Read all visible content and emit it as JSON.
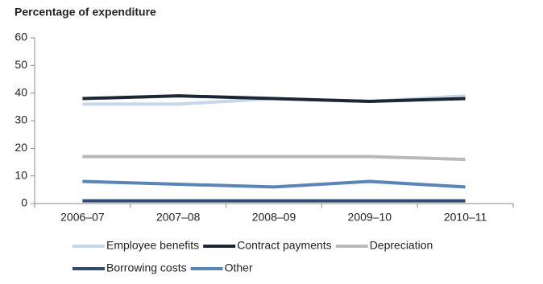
{
  "chart_data": {
    "type": "line",
    "title": "Percentage of expenditure",
    "categories": [
      "2006–07",
      "2007–08",
      "2008–09",
      "2009–10",
      "2010–11"
    ],
    "series": [
      {
        "name": "Employee benefits",
        "color": "#c6d7ea",
        "values": [
          36,
          36,
          38,
          37,
          39
        ]
      },
      {
        "name": "Contract payments",
        "color": "#1c2733",
        "values": [
          38,
          39,
          38,
          37,
          38
        ]
      },
      {
        "name": "Depreciation",
        "color": "#b9b9b9",
        "values": [
          17,
          17,
          17,
          17,
          16
        ]
      },
      {
        "name": "Borrowing costs",
        "color": "#2f4b6e",
        "values": [
          1,
          1,
          1,
          1,
          1
        ]
      },
      {
        "name": "Other",
        "color": "#5b84b6",
        "values": [
          8,
          7,
          6,
          8,
          6
        ]
      }
    ],
    "ylim": [
      0,
      60
    ],
    "yticks": [
      0,
      10,
      20,
      30,
      40,
      50,
      60
    ],
    "grid": false
  }
}
